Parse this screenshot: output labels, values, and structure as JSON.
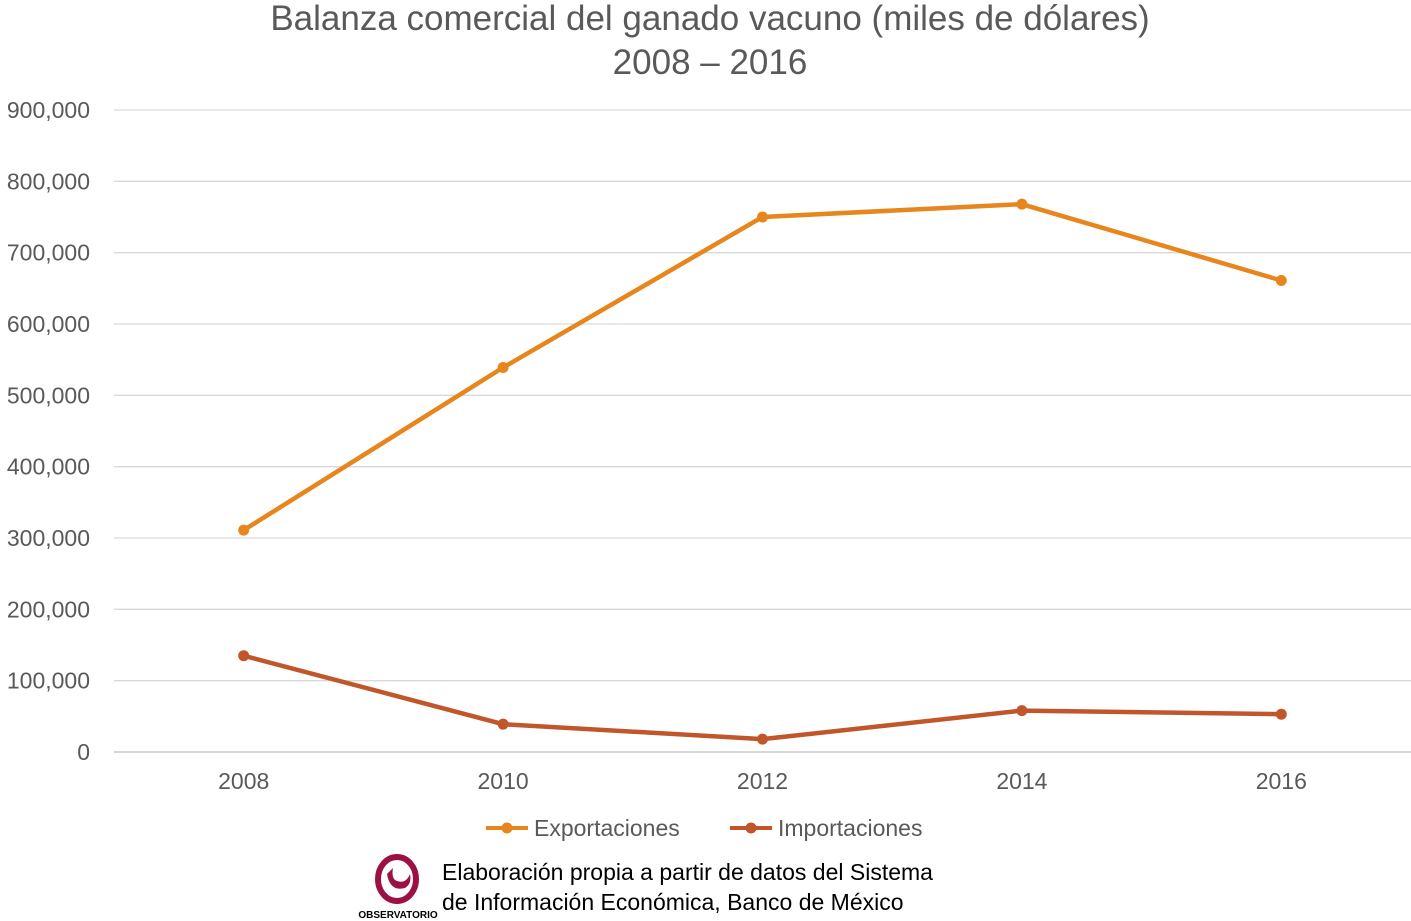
{
  "chart_data": {
    "type": "line",
    "title_line1": "Balanza comercial del ganado vacuno (miles de dólares)",
    "title_line2": "2008 – 2016",
    "categories": [
      "2008",
      "2010",
      "2012",
      "2014",
      "2016"
    ],
    "ylim": [
      0,
      900000
    ],
    "yticks": [
      0,
      100000,
      200000,
      300000,
      400000,
      500000,
      600000,
      700000,
      800000,
      900000
    ],
    "ytick_labels": [
      "0",
      "100,000",
      "200,000",
      "300,000",
      "400,000",
      "500,000",
      "600,000",
      "700,000",
      "800,000",
      "900,000"
    ],
    "grid": true,
    "legend_position": "bottom",
    "series": [
      {
        "name": "Exportaciones",
        "color": "#E6861C",
        "values": [
          311000,
          539000,
          750000,
          768000,
          661000
        ]
      },
      {
        "name": "Importaciones",
        "color": "#C0562A",
        "values": [
          135000,
          39000,
          18000,
          58000,
          53000
        ]
      }
    ]
  },
  "source": {
    "line1": "Elaboración propia a partir de datos del Sistema",
    "line2": "de Información Económica, Banco de México",
    "logo_text": "OBSERVATORIO",
    "logo_color": "#9B1045",
    "logo_icon": "observatorio-logo-icon"
  }
}
